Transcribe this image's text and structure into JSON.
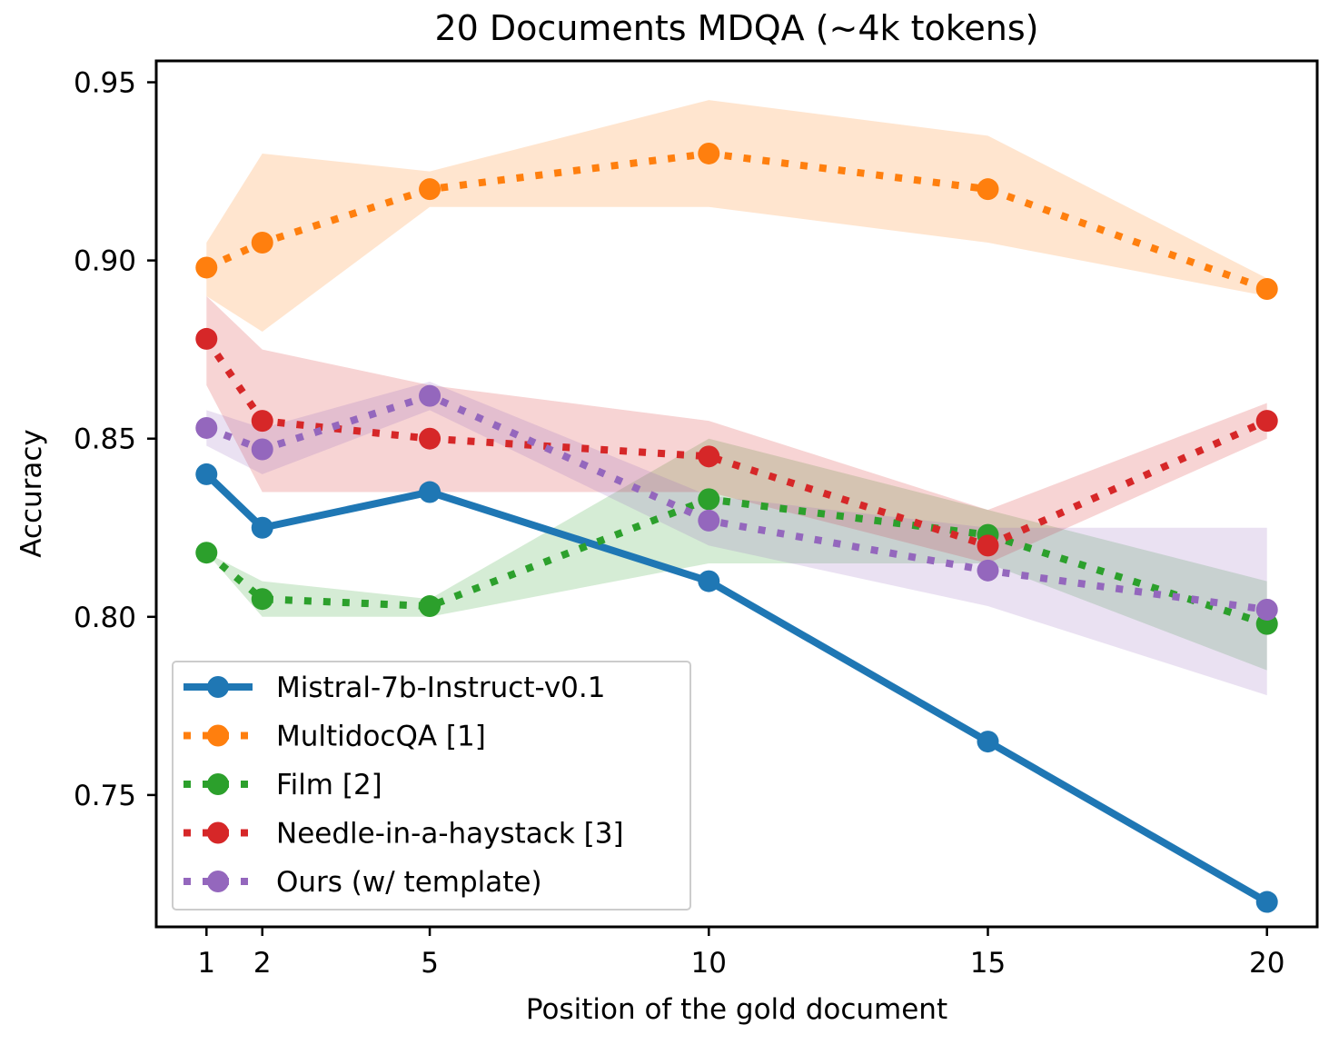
{
  "chart_data": {
    "type": "line",
    "title": "20 Documents MDQA (~4k tokens)",
    "xlabel": "Position of the gold document",
    "ylabel": "Accuracy",
    "x": [
      1,
      2,
      5,
      10,
      15,
      20
    ],
    "xticks": [
      1,
      2,
      5,
      10,
      15,
      20
    ],
    "xtick_labels": [
      "1",
      "2",
      "5",
      "10",
      "15",
      "20"
    ],
    "xlim": [
      0.1,
      20.9
    ],
    "yticks": [
      0.75,
      0.8,
      0.85,
      0.9,
      0.95
    ],
    "ytick_labels": [
      "0.75",
      "0.80",
      "0.85",
      "0.90",
      "0.95"
    ],
    "ylim": [
      0.713,
      0.956
    ],
    "grid": false,
    "legend_position": "lower-left",
    "series": [
      {
        "name": "Mistral-7b-Instruct-v0.1",
        "color": "#1f77b4",
        "style": "solid",
        "values": [
          0.84,
          0.825,
          0.835,
          0.81,
          0.765,
          0.72
        ]
      },
      {
        "name": "MultidocQA [1]",
        "color": "#ff7f0e",
        "style": "dotted",
        "values": [
          0.898,
          0.905,
          0.92,
          0.93,
          0.92,
          0.892
        ],
        "band_low": [
          0.89,
          0.88,
          0.915,
          0.915,
          0.905,
          0.89
        ],
        "band_high": [
          0.905,
          0.93,
          0.925,
          0.945,
          0.935,
          0.895
        ]
      },
      {
        "name": "Film [2]",
        "color": "#2ca02c",
        "style": "dotted",
        "values": [
          0.818,
          0.805,
          0.803,
          0.833,
          0.823,
          0.798
        ],
        "band_low": [
          0.818,
          0.8,
          0.8,
          0.815,
          0.815,
          0.785
        ],
        "band_high": [
          0.818,
          0.81,
          0.805,
          0.85,
          0.83,
          0.81
        ]
      },
      {
        "name": "Needle-in-a-haystack [3]",
        "color": "#d62728",
        "style": "dotted",
        "values": [
          0.878,
          0.855,
          0.85,
          0.845,
          0.82,
          0.855
        ],
        "band_low": [
          0.865,
          0.835,
          0.835,
          0.835,
          0.815,
          0.85
        ],
        "band_high": [
          0.89,
          0.875,
          0.865,
          0.855,
          0.83,
          0.86
        ]
      },
      {
        "name": "Ours (w/ template)",
        "color": "#9467bd",
        "style": "dotted",
        "values": [
          0.853,
          0.847,
          0.862,
          0.827,
          0.813,
          0.802
        ],
        "band_low": [
          0.848,
          0.84,
          0.858,
          0.82,
          0.803,
          0.778
        ],
        "band_high": [
          0.858,
          0.853,
          0.866,
          0.834,
          0.825,
          0.825
        ]
      }
    ]
  }
}
